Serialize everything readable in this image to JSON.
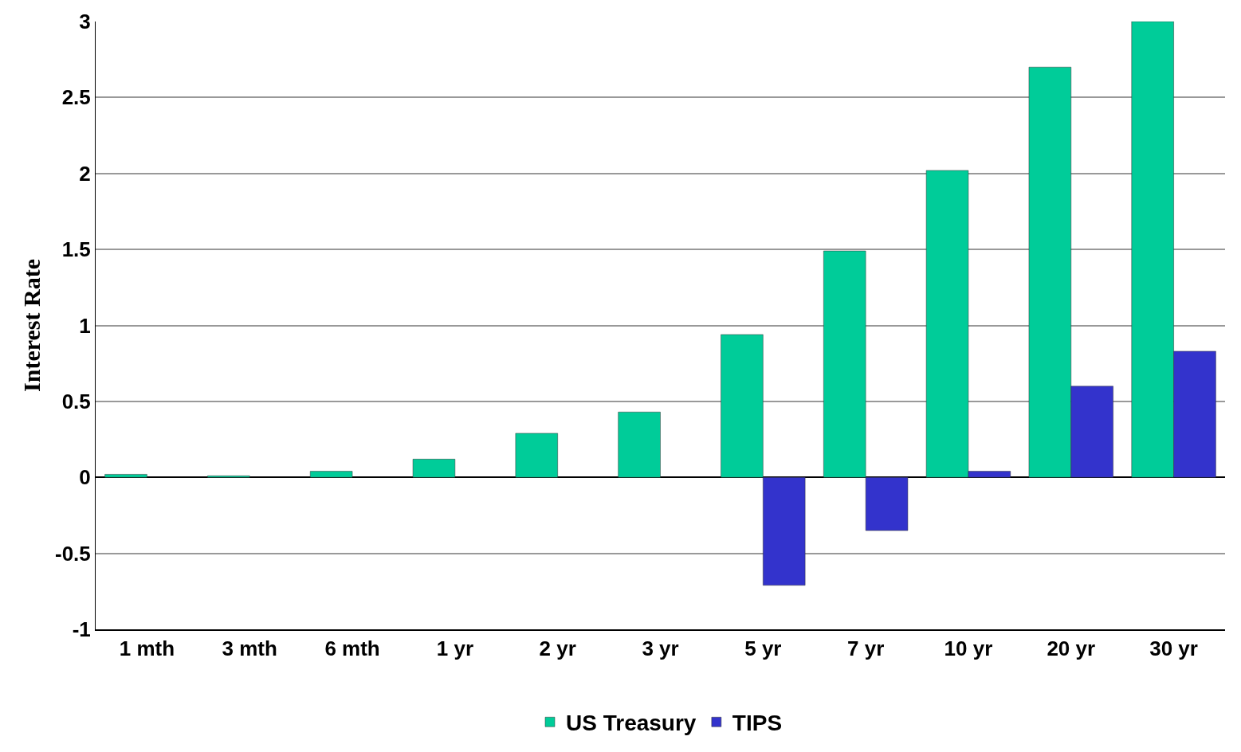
{
  "chart_data": {
    "type": "bar",
    "ylabel": "Interest Rate",
    "categories": [
      "1 mth",
      "3 mth",
      "6 mth",
      "1 yr",
      "2 yr",
      "3 yr",
      "5 yr",
      "7 yr",
      "10 yr",
      "20 yr",
      "30 yr"
    ],
    "series": [
      {
        "name": "US Treasury",
        "color": "#00cc99",
        "values": [
          0.02,
          0.01,
          0.04,
          0.12,
          0.29,
          0.43,
          0.94,
          1.49,
          2.02,
          2.7,
          3.0
        ]
      },
      {
        "name": "TIPS",
        "color": "#3333cc",
        "values": [
          null,
          null,
          null,
          null,
          null,
          null,
          -0.71,
          -0.35,
          0.04,
          0.6,
          0.83
        ]
      }
    ],
    "ylim": [
      -1,
      3
    ],
    "yticks": [
      -1,
      -0.5,
      0,
      0.5,
      1,
      1.5,
      2,
      2.5,
      3
    ],
    "grid": "y",
    "legend": "bottom"
  }
}
